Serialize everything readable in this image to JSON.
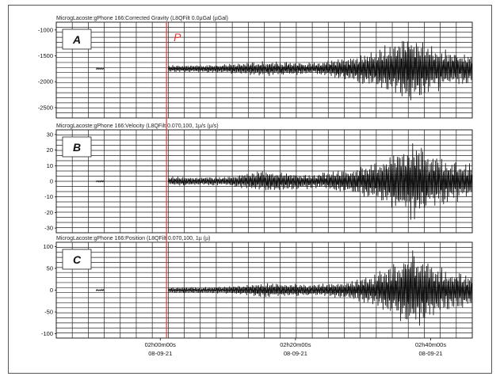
{
  "chart_data": [
    {
      "type": "line",
      "panel_letter": "A",
      "title": "MicrogLacoste:gPhone 166:Corrected Gravity (L8QFilt 0.0µGal (µGal)",
      "yticks": [
        -1000,
        -1500,
        -2000,
        -2500
      ],
      "ylim": [
        -2700,
        -850
      ],
      "baseline": -1750,
      "amplitude_envelope": [
        {
          "x": 0.0,
          "a": 10
        },
        {
          "x": 0.18,
          "a": 15
        },
        {
          "x": 0.22,
          "a": 60
        },
        {
          "x": 0.4,
          "a": 90
        },
        {
          "x": 0.5,
          "a": 150
        },
        {
          "x": 0.62,
          "a": 120
        },
        {
          "x": 0.7,
          "a": 250
        },
        {
          "x": 0.76,
          "a": 350
        },
        {
          "x": 0.82,
          "a": 560
        },
        {
          "x": 0.86,
          "a": 700
        },
        {
          "x": 0.9,
          "a": 480
        },
        {
          "x": 0.95,
          "a": 380
        },
        {
          "x": 1.0,
          "a": 300
        }
      ]
    },
    {
      "type": "line",
      "panel_letter": "B",
      "title": "MicrogLacoste:gPhone 166:Velocity (L8QFilt 0.070,100, 1µ/s (µ/s)",
      "yticks": [
        30,
        20,
        10,
        0,
        -10,
        -20,
        -30
      ],
      "ylim": [
        -33,
        33
      ],
      "baseline": 0,
      "amplitude_envelope": [
        {
          "x": 0.0,
          "a": 0.3
        },
        {
          "x": 0.18,
          "a": 0.6
        },
        {
          "x": 0.22,
          "a": 3
        },
        {
          "x": 0.4,
          "a": 3
        },
        {
          "x": 0.5,
          "a": 7
        },
        {
          "x": 0.62,
          "a": 5
        },
        {
          "x": 0.7,
          "a": 8
        },
        {
          "x": 0.76,
          "a": 12
        },
        {
          "x": 0.82,
          "a": 20
        },
        {
          "x": 0.86,
          "a": 28
        },
        {
          "x": 0.9,
          "a": 18
        },
        {
          "x": 0.95,
          "a": 14
        },
        {
          "x": 1.0,
          "a": 12
        }
      ]
    },
    {
      "type": "line",
      "panel_letter": "C",
      "title": "MicrogLacoste:gPhone 166:Position (L8QFilt 0.070,100, 1µ (µ)",
      "yticks": [
        100,
        50,
        0,
        -50,
        -100
      ],
      "ylim": [
        -110,
        110
      ],
      "baseline": 0,
      "amplitude_envelope": [
        {
          "x": 0.0,
          "a": 1
        },
        {
          "x": 0.18,
          "a": 2
        },
        {
          "x": 0.22,
          "a": 6
        },
        {
          "x": 0.4,
          "a": 8
        },
        {
          "x": 0.5,
          "a": 18
        },
        {
          "x": 0.62,
          "a": 14
        },
        {
          "x": 0.7,
          "a": 20
        },
        {
          "x": 0.76,
          "a": 35
        },
        {
          "x": 0.82,
          "a": 70
        },
        {
          "x": 0.86,
          "a": 100
        },
        {
          "x": 0.9,
          "a": 65
        },
        {
          "x": 0.95,
          "a": 45
        },
        {
          "x": 1.0,
          "a": 40
        }
      ]
    }
  ],
  "x_axis": {
    "ticks": [
      {
        "time": "02h00m00s",
        "date": "08-09-21",
        "pos": 0.25
      },
      {
        "time": "02h20m00s",
        "date": "08-09-21",
        "pos": 0.575
      },
      {
        "time": "02h40m00s",
        "date": "08-09-21",
        "pos": 0.9
      }
    ]
  },
  "p_marker": {
    "label": "P",
    "pos": 0.265,
    "color": "#e0392f"
  },
  "trace_color": "#111111",
  "grid_color": "#222222"
}
